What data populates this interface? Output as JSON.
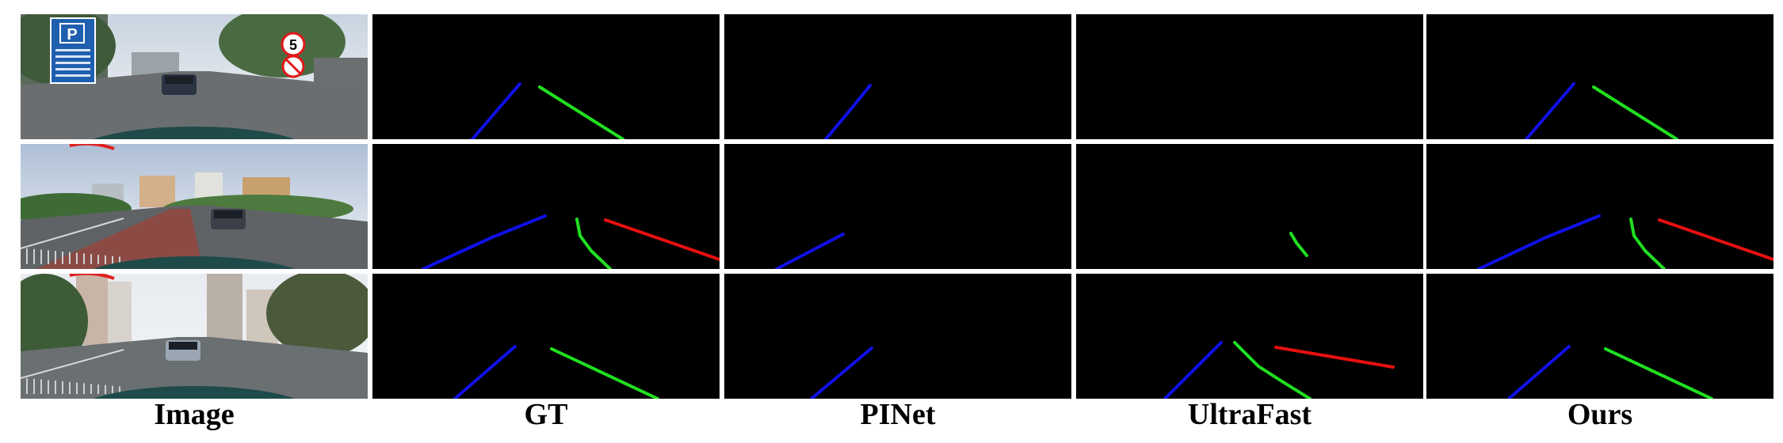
{
  "figure": {
    "columns": [
      {
        "key": "image",
        "label": "Image"
      },
      {
        "key": "gt",
        "label": "GT"
      },
      {
        "key": "pinet",
        "label": "PINet"
      },
      {
        "key": "ultrafast",
        "label": "UltraFast"
      },
      {
        "key": "ours",
        "label": "Ours"
      }
    ],
    "rows": [
      {
        "scene": "urban-road-with-parking-sign"
      },
      {
        "scene": "multi-lane-road-with-red-lane"
      },
      {
        "scene": "city-street-with-tall-buildings"
      }
    ],
    "sign_texts": {
      "parking": "P",
      "speed_limit": "5"
    },
    "lane_colors": {
      "lane_1": "#1010e8",
      "lane_2": "#20e020",
      "lane_3": "#e81010"
    },
    "mask_background": "#000000"
  }
}
